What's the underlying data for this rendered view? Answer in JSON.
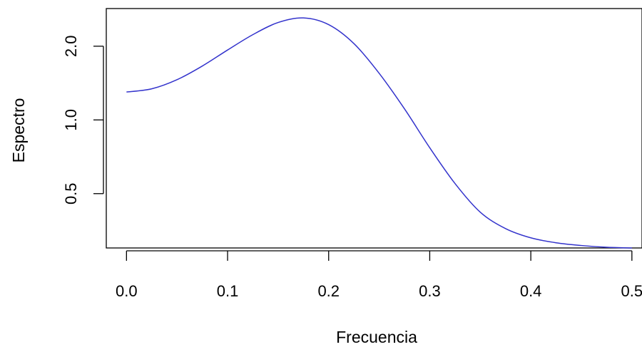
{
  "chart_data": {
    "type": "line",
    "title": "",
    "xlabel": "Frecuencia",
    "ylabel": "Espectro",
    "log_y": true,
    "xlim": [
      -0.02,
      0.51
    ],
    "ylim": [
      0.3,
      2.85
    ],
    "x_ticks": [
      {
        "value": 0.0,
        "label": "0.0"
      },
      {
        "value": 0.1,
        "label": "0.1"
      },
      {
        "value": 0.2,
        "label": "0.2"
      },
      {
        "value": 0.3,
        "label": "0.3"
      },
      {
        "value": 0.4,
        "label": "0.4"
      },
      {
        "value": 0.5,
        "label": "0.5"
      }
    ],
    "y_ticks": [
      {
        "value": 0.5,
        "label": "0.5"
      },
      {
        "value": 1.0,
        "label": "1.0"
      },
      {
        "value": 2.0,
        "label": "2.0"
      }
    ],
    "grid": false,
    "series": [
      {
        "color": "#3333cc",
        "x": [
          0.0,
          0.025,
          0.05,
          0.075,
          0.1,
          0.125,
          0.15,
          0.175,
          0.2,
          0.225,
          0.25,
          0.275,
          0.3,
          0.325,
          0.35,
          0.375,
          0.4,
          0.425,
          0.45,
          0.475,
          0.5
        ],
        "y": [
          1.3,
          1.34,
          1.46,
          1.66,
          1.93,
          2.23,
          2.5,
          2.61,
          2.45,
          2.05,
          1.55,
          1.11,
          0.77,
          0.55,
          0.42,
          0.36,
          0.33,
          0.315,
          0.307,
          0.302,
          0.3
        ]
      }
    ]
  }
}
